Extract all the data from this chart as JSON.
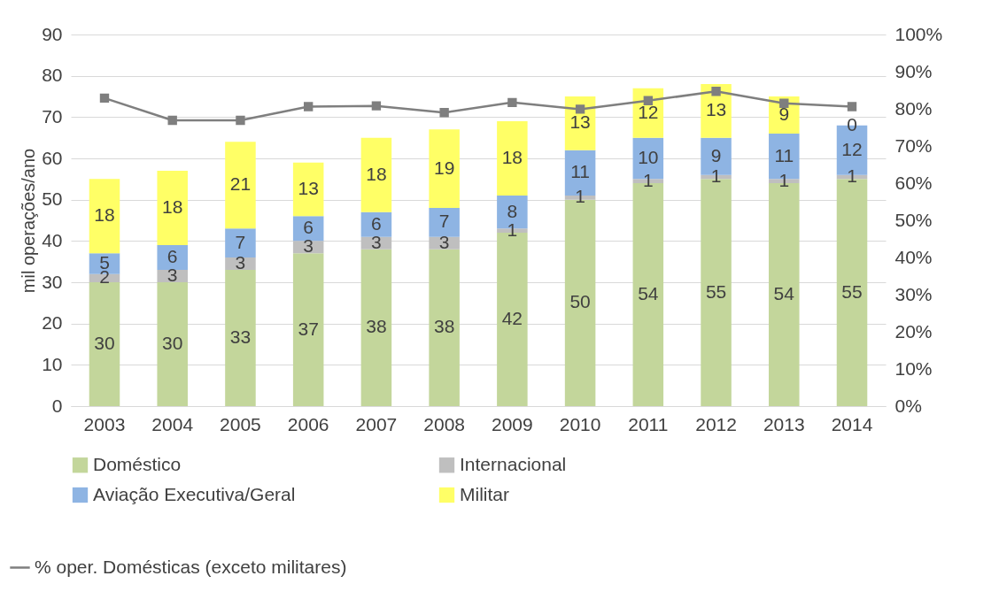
{
  "chart_data": {
    "type": "bar",
    "stacked": true,
    "categories": [
      "2003",
      "2004",
      "2005",
      "2006",
      "2007",
      "2008",
      "2009",
      "2010",
      "2011",
      "2012",
      "2013",
      "2014"
    ],
    "ylabel": "mil operações/ano",
    "ylim": [
      0,
      90
    ],
    "yticks": [
      0,
      10,
      20,
      30,
      40,
      50,
      60,
      70,
      80,
      90
    ],
    "y2lim": [
      0,
      100
    ],
    "y2ticks": [
      {
        "value": 0,
        "label": "0%"
      },
      {
        "value": 10,
        "label": "10%"
      },
      {
        "value": 20,
        "label": "20%"
      },
      {
        "value": 30,
        "label": "30%"
      },
      {
        "value": 40,
        "label": "40%"
      },
      {
        "value": 50,
        "label": "50%"
      },
      {
        "value": 60,
        "label": "60%"
      },
      {
        "value": 70,
        "label": "70%"
      },
      {
        "value": 80,
        "label": "80%"
      },
      {
        "value": 90,
        "label": "90%"
      },
      {
        "value": 100,
        "label": "100%"
      }
    ],
    "grid": "y",
    "legend": "bottom",
    "series": [
      {
        "name": "Doméstico",
        "color": "#c3d69b",
        "values": [
          30,
          30,
          33,
          37,
          38,
          38,
          42,
          50,
          54,
          55,
          54,
          55
        ],
        "value_labels": [
          "30",
          "30",
          "33",
          "37",
          "38",
          "38",
          "42",
          "50",
          "54",
          "55",
          "54",
          "55"
        ]
      },
      {
        "name": "Internacional",
        "color": "#bfbfbf",
        "values": [
          2,
          3,
          3,
          3,
          3,
          3,
          1,
          1,
          1,
          1,
          1,
          1
        ],
        "value_labels": [
          "2",
          "3",
          "3",
          "3",
          "3",
          "3",
          "1",
          "1",
          "1",
          "1",
          "1",
          "1"
        ]
      },
      {
        "name": "Aviação Executiva/Geral",
        "color": "#8eb4e3",
        "values": [
          5,
          6,
          7,
          6,
          6,
          7,
          8,
          11,
          10,
          9,
          11,
          12
        ],
        "value_labels": [
          "5",
          "6",
          "7",
          "6",
          "6",
          "7",
          "8",
          "11",
          "10",
          "9",
          "11",
          "12"
        ]
      },
      {
        "name": "Militar",
        "color": "#ffff66",
        "values": [
          18,
          18,
          21,
          13,
          18,
          19,
          18,
          13,
          12,
          13,
          9,
          0
        ],
        "value_labels": [
          "18",
          "18",
          "21",
          "13",
          "18",
          "19",
          "18",
          "13",
          "12",
          "13",
          "9",
          "0"
        ]
      },
      {
        "name": "% oper. Domésticas (exceto militares)",
        "type": "line",
        "axis": "y2",
        "marker": "square",
        "color": "#7f7f7f",
        "values": [
          82.9,
          76.9,
          76.9,
          80.6,
          80.8,
          79.0,
          81.7,
          79.9,
          82.2,
          84.7,
          81.5,
          80.6
        ]
      }
    ]
  }
}
